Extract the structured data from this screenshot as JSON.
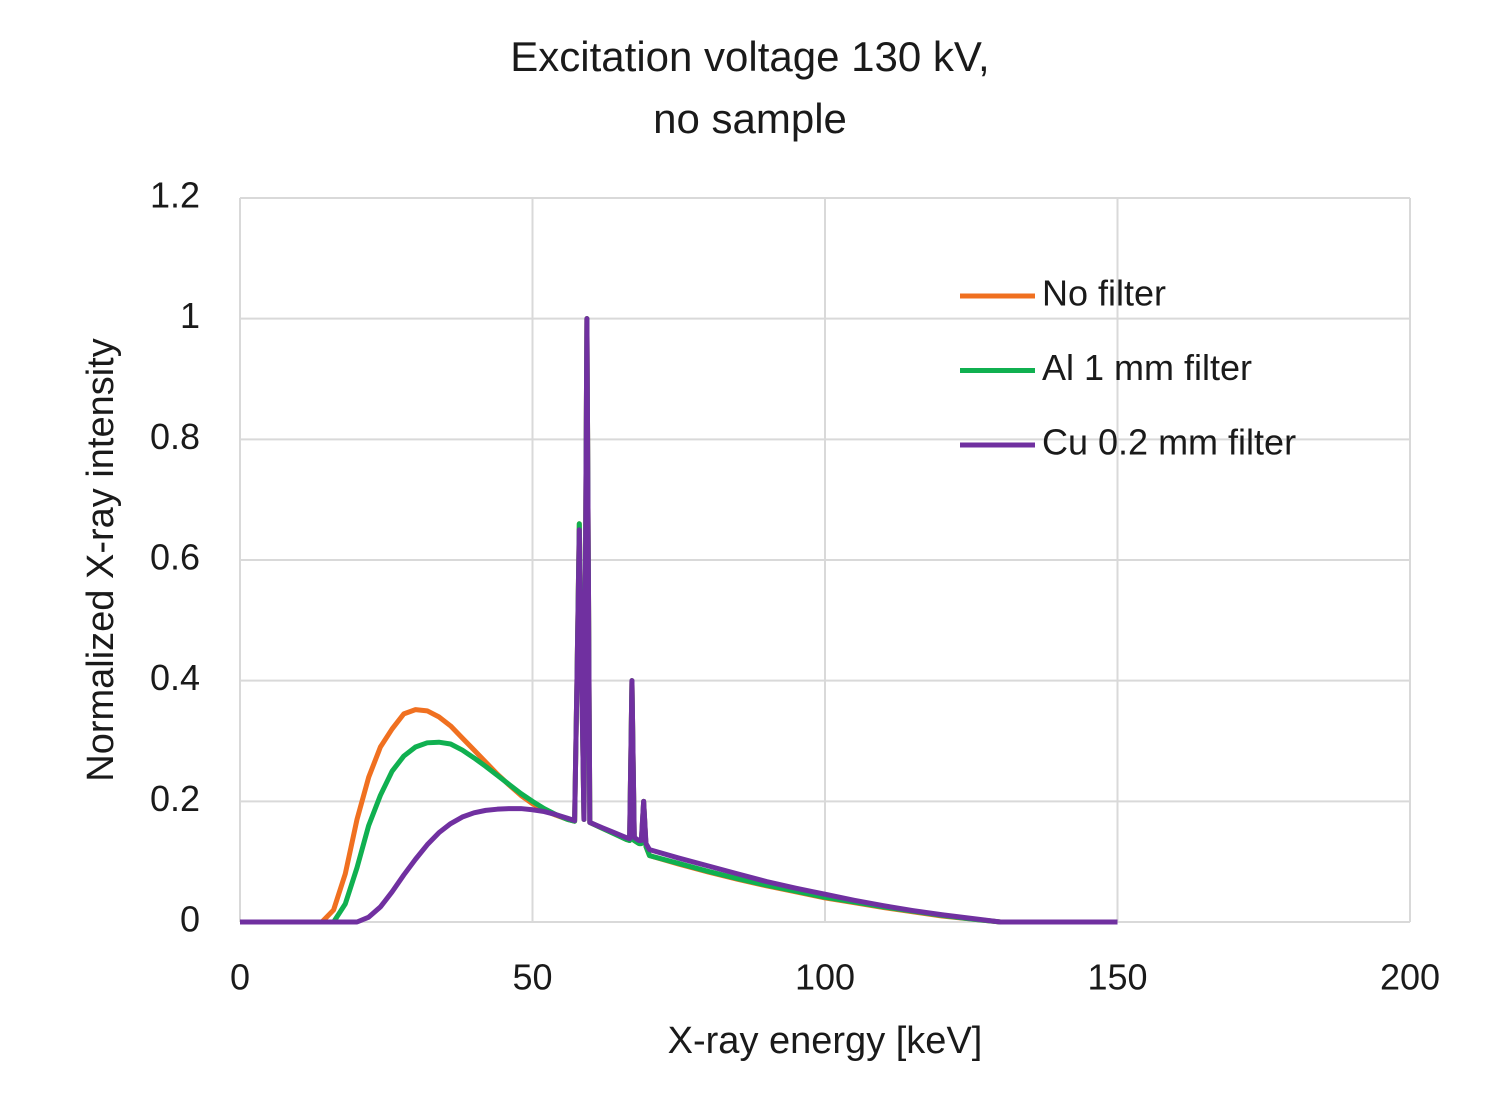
{
  "chart_data": {
    "type": "line",
    "title": "Excitation voltage 130 kV,",
    "subtitle": "no sample",
    "x_label": "X-ray energy [keV]",
    "y_label": "Normalized X-ray intensity",
    "xlim": [
      0,
      200
    ],
    "xticks": [
      0,
      50,
      100,
      150,
      200
    ],
    "ylim": [
      0,
      1.2
    ],
    "yticks": [
      0,
      0.2,
      0.4,
      0.6,
      0.8,
      1,
      1.2
    ],
    "grid": true,
    "legend": "upper right",
    "x": [
      0,
      10,
      14,
      16,
      18,
      20,
      22,
      24,
      26,
      28,
      30,
      32,
      34,
      36,
      38,
      40,
      42,
      44,
      46,
      48,
      50,
      52,
      54,
      56,
      57.2,
      57.6,
      58.0,
      58.8,
      59.3,
      59.8,
      62,
      64,
      66,
      66.6,
      67,
      67.4,
      68.2,
      68.6,
      69,
      69.4,
      70,
      75,
      80,
      85,
      90,
      95,
      100,
      105,
      110,
      115,
      120,
      125,
      130,
      140,
      150
    ],
    "series": [
      {
        "name": "No filter",
        "color": "#f07020",
        "values": [
          0,
          0,
          0,
          0.02,
          0.08,
          0.17,
          0.24,
          0.29,
          0.32,
          0.345,
          0.352,
          0.35,
          0.34,
          0.325,
          0.305,
          0.285,
          0.265,
          0.245,
          0.227,
          0.21,
          0.196,
          0.185,
          0.177,
          0.17,
          0.167,
          0.4,
          0.66,
          0.17,
          1.0,
          0.165,
          0.155,
          0.146,
          0.137,
          0.135,
          0.4,
          0.135,
          0.13,
          0.13,
          0.2,
          0.125,
          0.11,
          0.096,
          0.083,
          0.071,
          0.06,
          0.05,
          0.04,
          0.032,
          0.024,
          0.017,
          0.01,
          0.005,
          0,
          0,
          0
        ]
      },
      {
        "name": "Al 1 mm filter",
        "color": "#10b050",
        "values": [
          0,
          0,
          0,
          0,
          0.03,
          0.09,
          0.16,
          0.21,
          0.25,
          0.275,
          0.29,
          0.297,
          0.298,
          0.295,
          0.285,
          0.272,
          0.258,
          0.243,
          0.228,
          0.213,
          0.2,
          0.188,
          0.178,
          0.17,
          0.167,
          0.4,
          0.66,
          0.17,
          1.0,
          0.165,
          0.155,
          0.146,
          0.137,
          0.135,
          0.4,
          0.135,
          0.13,
          0.13,
          0.2,
          0.125,
          0.11,
          0.097,
          0.084,
          0.072,
          0.061,
          0.051,
          0.041,
          0.033,
          0.025,
          0.018,
          0.011,
          0.005,
          0,
          0,
          0
        ]
      },
      {
        "name": "Cu 0.2 mm filter",
        "color": "#7030a0",
        "values": [
          0,
          0,
          0,
          0,
          0,
          0,
          0.008,
          0.025,
          0.05,
          0.078,
          0.104,
          0.128,
          0.148,
          0.163,
          0.174,
          0.181,
          0.185,
          0.187,
          0.188,
          0.188,
          0.186,
          0.183,
          0.178,
          0.172,
          0.168,
          0.4,
          0.65,
          0.17,
          1.0,
          0.165,
          0.156,
          0.148,
          0.14,
          0.138,
          0.4,
          0.14,
          0.135,
          0.135,
          0.2,
          0.13,
          0.12,
          0.106,
          0.093,
          0.08,
          0.067,
          0.056,
          0.046,
          0.036,
          0.027,
          0.019,
          0.012,
          0.006,
          0,
          0,
          0
        ]
      }
    ]
  }
}
